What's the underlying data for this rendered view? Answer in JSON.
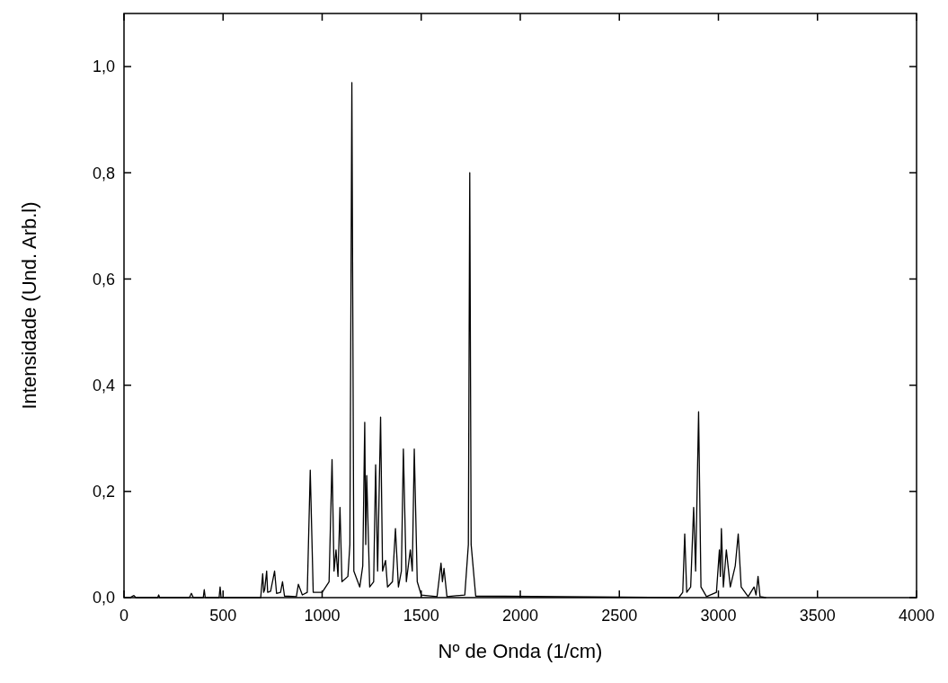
{
  "chart_data": {
    "type": "line",
    "xlabel": "Nº de Onda (1/cm)",
    "ylabel": "Intensidade (Und. Arb.l)",
    "xlim": [
      0,
      4000
    ],
    "ylim": [
      0,
      1.1
    ],
    "xticks": [
      0,
      500,
      1000,
      1500,
      2000,
      2500,
      3000,
      3500,
      4000
    ],
    "yticks": [
      {
        "value": 0,
        "label": "0,0"
      },
      {
        "value": 0.2,
        "label": "0,2"
      },
      {
        "value": 0.4,
        "label": "0,4"
      },
      {
        "value": 0.6,
        "label": "0,6"
      },
      {
        "value": 0.8,
        "label": "0,8"
      },
      {
        "value": 1.0,
        "label": "1,0"
      }
    ],
    "grid": false,
    "marker": "none",
    "line_style": "solid",
    "series": [
      {
        "color": "#000000",
        "x": [
          30,
          50,
          60,
          170,
          175,
          180,
          330,
          340,
          350,
          400,
          405,
          410,
          480,
          485,
          490,
          690,
          700,
          705,
          710,
          720,
          725,
          740,
          760,
          770,
          790,
          800,
          810,
          870,
          880,
          900,
          925,
          940,
          955,
          1000,
          1035,
          1050,
          1060,
          1070,
          1080,
          1090,
          1100,
          1130,
          1140,
          1150,
          1160,
          1190,
          1205,
          1215,
          1220,
          1225,
          1240,
          1260,
          1270,
          1280,
          1295,
          1305,
          1320,
          1330,
          1355,
          1370,
          1385,
          1400,
          1410,
          1425,
          1445,
          1455,
          1465,
          1480,
          1500,
          1580,
          1600,
          1607,
          1615,
          1630,
          1720,
          1738,
          1745,
          1752,
          1775,
          2800,
          2820,
          2830,
          2840,
          2860,
          2875,
          2885,
          2900,
          2912,
          2940,
          2990,
          3005,
          3010,
          3015,
          3025,
          3040,
          3060,
          3085,
          3100,
          3115,
          3150,
          3180,
          3190,
          3200,
          3210,
          3240
        ],
        "values": [
          0,
          0.004,
          0,
          0,
          0.005,
          0,
          0,
          0.008,
          0,
          0,
          0.015,
          0,
          0,
          0.02,
          0,
          0,
          0.045,
          0.01,
          0.015,
          0.05,
          0.01,
          0.012,
          0.05,
          0.008,
          0.01,
          0.03,
          0.003,
          0.002,
          0.025,
          0.005,
          0.01,
          0.24,
          0.01,
          0.01,
          0.03,
          0.26,
          0.05,
          0.09,
          0.04,
          0.17,
          0.03,
          0.04,
          0.1,
          0.97,
          0.05,
          0.02,
          0.06,
          0.33,
          0.1,
          0.23,
          0.02,
          0.03,
          0.25,
          0.05,
          0.34,
          0.05,
          0.07,
          0.02,
          0.03,
          0.13,
          0.02,
          0.05,
          0.28,
          0.03,
          0.09,
          0.05,
          0.28,
          0.03,
          0.005,
          0.002,
          0.065,
          0.03,
          0.055,
          0.002,
          0.005,
          0.1,
          0.8,
          0.1,
          0.003,
          0,
          0.01,
          0.12,
          0.01,
          0.02,
          0.17,
          0.05,
          0.35,
          0.02,
          0.002,
          0.01,
          0.09,
          0.04,
          0.13,
          0.02,
          0.09,
          0.02,
          0.06,
          0.12,
          0.02,
          0.002,
          0.02,
          0.005,
          0.04,
          0.002,
          0
        ]
      }
    ]
  }
}
